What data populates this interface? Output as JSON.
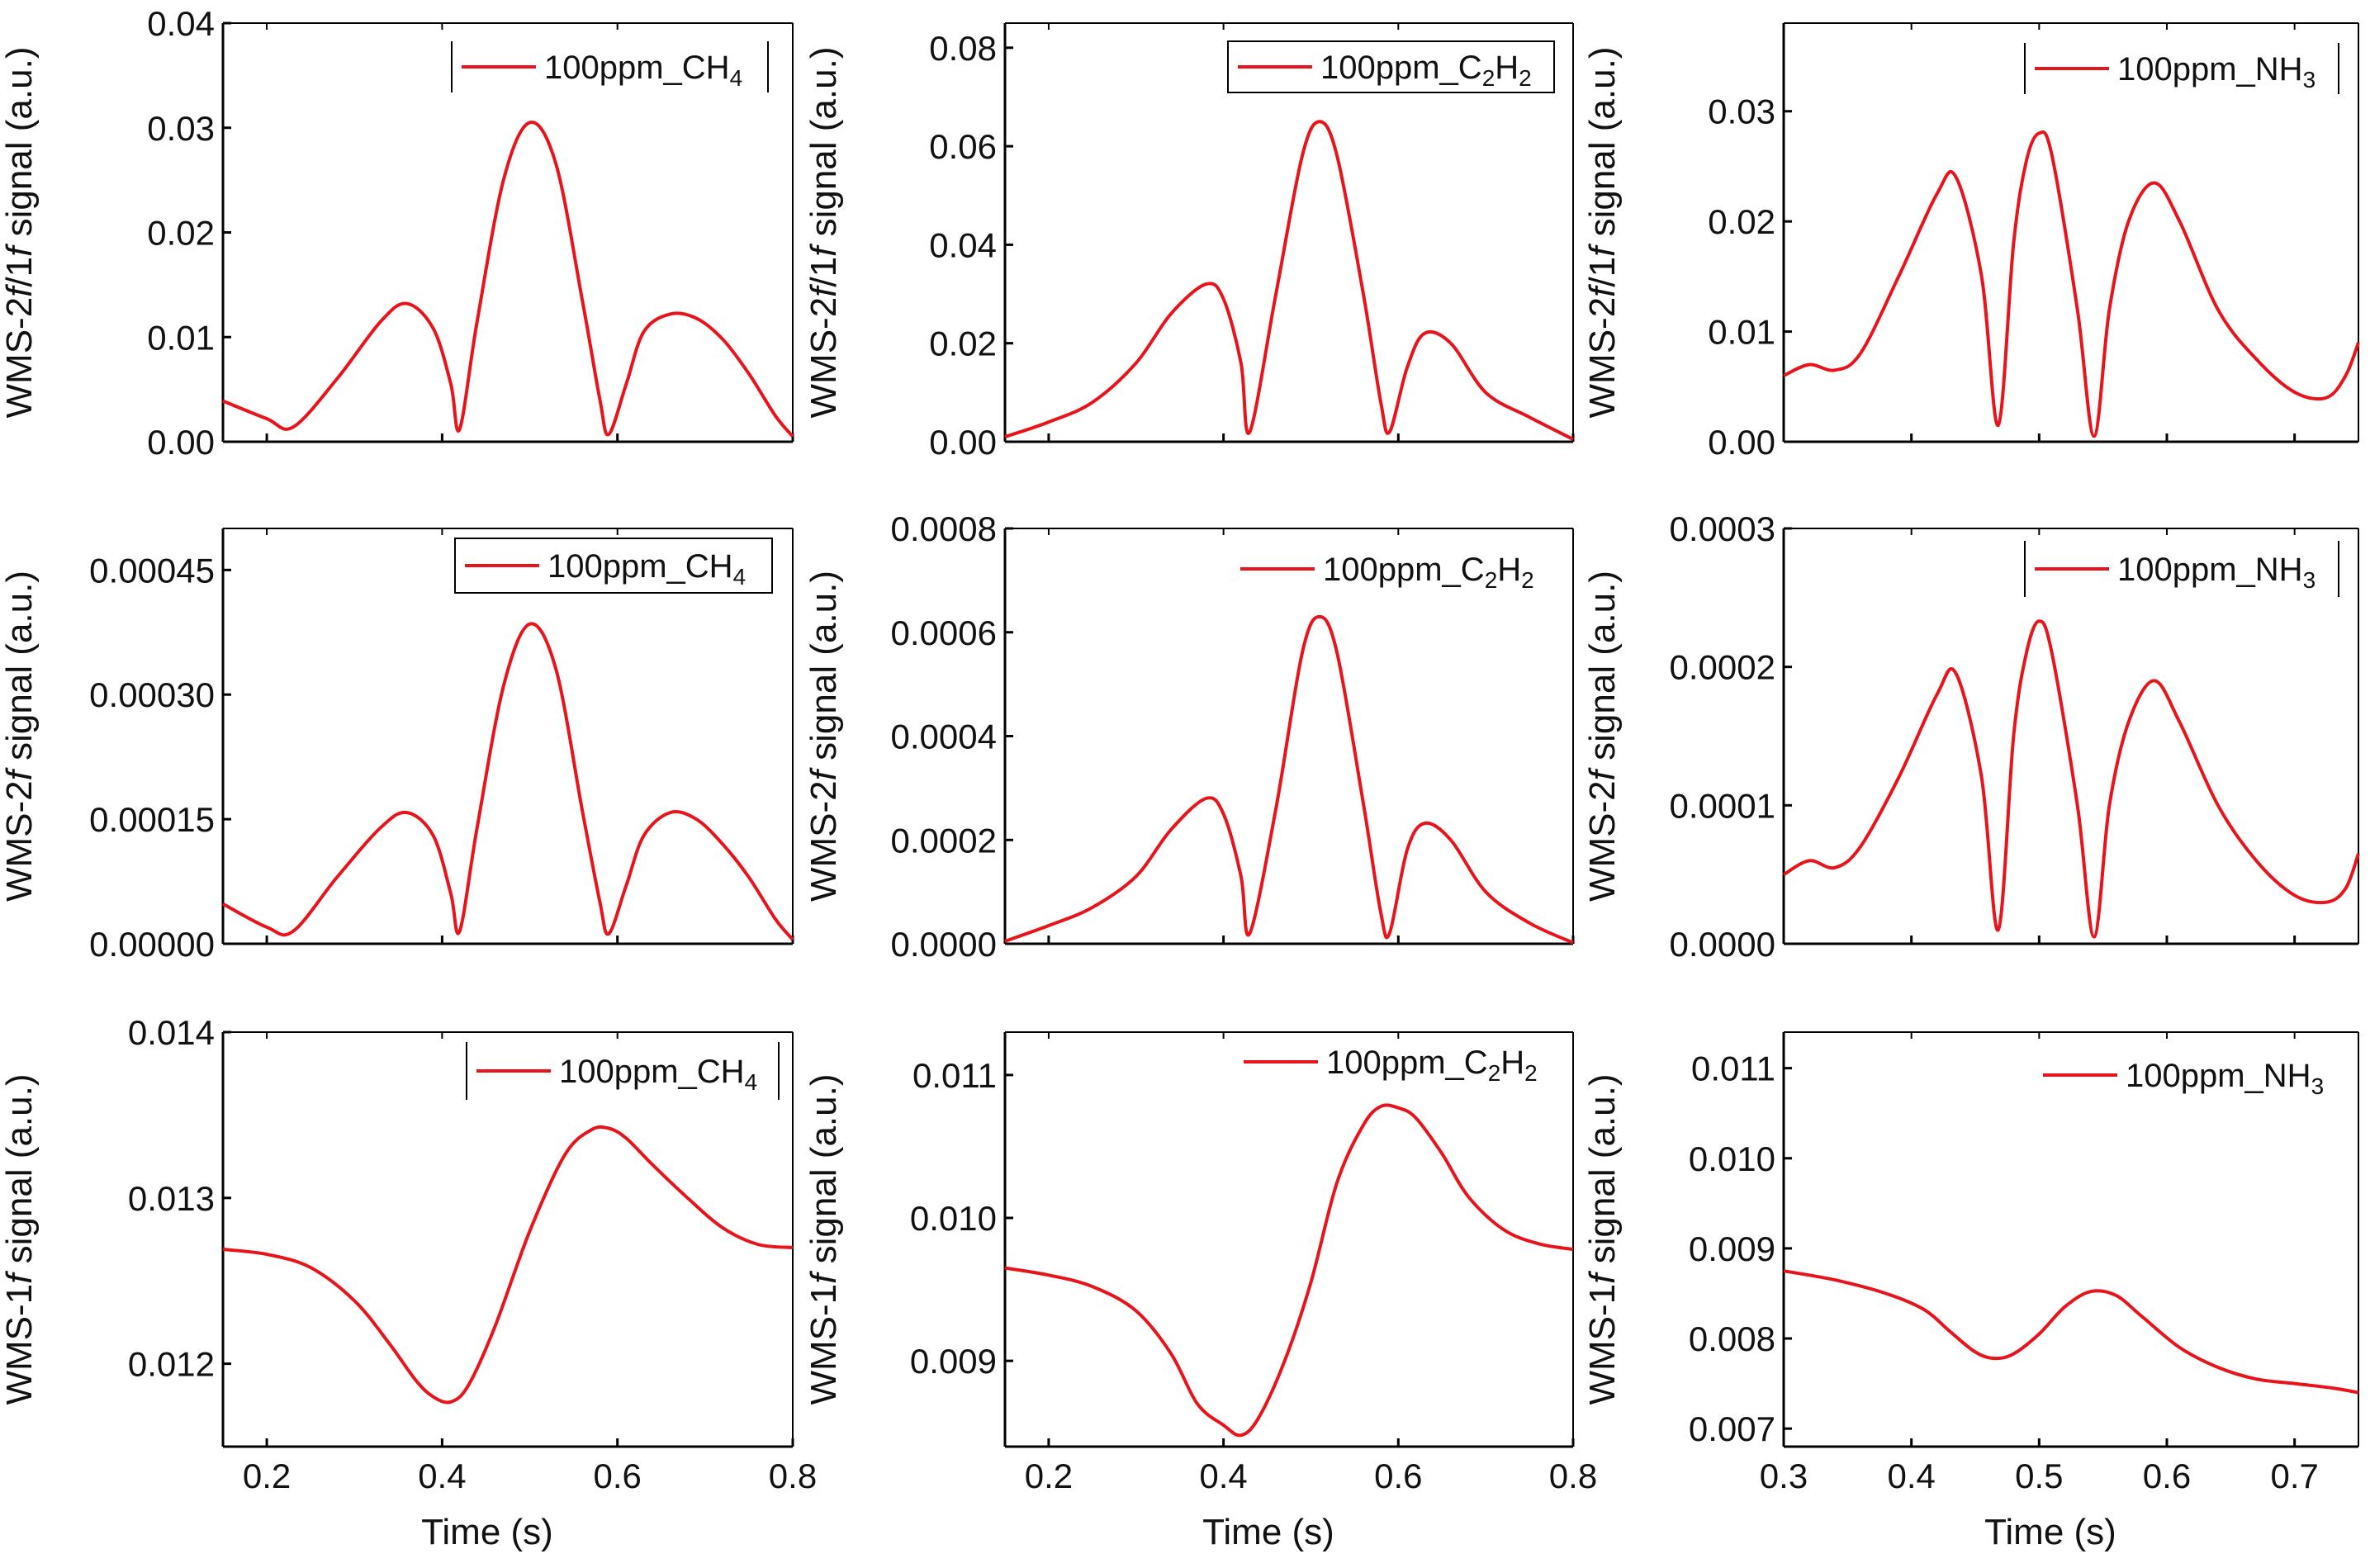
{
  "figure": {
    "line_color": "#e8141b",
    "axis_color": "#000000",
    "legend_border_color": "#000000"
  },
  "chart_data": [
    {
      "id": "r1c1",
      "type": "line",
      "xlabel": "",
      "ylabel": [
        "WMS-2",
        "f",
        "/1",
        "f",
        " signal (a.u.)"
      ],
      "xlim": [
        0.15,
        0.8
      ],
      "ylim": [
        0,
        0.04
      ],
      "yticks": [
        "0.00",
        "0.01",
        "0.02",
        "0.03",
        "0.04"
      ],
      "xticks": [],
      "legend": {
        "label": "100ppm_CH",
        "sub": "4",
        "style": "bars"
      },
      "series": [
        {
          "name": "100ppm_CH4",
          "x": [
            0.15,
            0.2,
            0.23,
            0.28,
            0.33,
            0.36,
            0.39,
            0.41,
            0.42,
            0.44,
            0.47,
            0.5,
            0.53,
            0.56,
            0.58,
            0.59,
            0.61,
            0.63,
            0.66,
            0.69,
            0.72,
            0.75,
            0.78,
            0.8
          ],
          "y": [
            0.0039,
            0.0022,
            0.0014,
            0.006,
            0.0115,
            0.0132,
            0.0108,
            0.0055,
            0.0012,
            0.0115,
            0.025,
            0.0305,
            0.0265,
            0.0135,
            0.004,
            0.0007,
            0.0055,
            0.0105,
            0.0122,
            0.0118,
            0.0098,
            0.0065,
            0.0025,
            0.0005
          ]
        }
      ]
    },
    {
      "id": "r1c2",
      "type": "line",
      "xlabel": "",
      "ylabel": [
        "WMS-2",
        "f",
        "/1",
        "f",
        " signal (a.u.)"
      ],
      "xlim": [
        0.15,
        0.8
      ],
      "ylim": [
        0,
        0.085
      ],
      "yticks": [
        "0.00",
        "0.02",
        "0.04",
        "0.06",
        "0.08"
      ],
      "xticks": [],
      "legend": {
        "label": "100ppm_C",
        "sub": "2",
        "mid": "H",
        "sub2": "2",
        "style": "box"
      },
      "series": [
        {
          "name": "100ppm_C2H2",
          "x": [
            0.15,
            0.2,
            0.25,
            0.3,
            0.34,
            0.38,
            0.4,
            0.42,
            0.43,
            0.46,
            0.49,
            0.51,
            0.53,
            0.56,
            0.58,
            0.59,
            0.61,
            0.63,
            0.66,
            0.7,
            0.75,
            0.8
          ],
          "y": [
            0.001,
            0.004,
            0.008,
            0.016,
            0.026,
            0.032,
            0.029,
            0.016,
            0.002,
            0.03,
            0.058,
            0.065,
            0.058,
            0.03,
            0.008,
            0.002,
            0.015,
            0.022,
            0.02,
            0.01,
            0.005,
            0.0005
          ]
        }
      ]
    },
    {
      "id": "r1c3",
      "type": "line",
      "xlabel": "",
      "ylabel": [
        "WMS-2",
        "f",
        "/1",
        "f",
        " signal (a.u.)"
      ],
      "xlim": [
        0.3,
        0.75
      ],
      "ylim": [
        0,
        0.038
      ],
      "yticks": [
        "0.00",
        "0.01",
        "0.02",
        "0.03"
      ],
      "xticks": [],
      "legend": {
        "label": "100ppm_NH",
        "sub": "3",
        "style": "bars"
      },
      "series": [
        {
          "name": "100ppm_NH3",
          "x": [
            0.3,
            0.32,
            0.34,
            0.36,
            0.39,
            0.42,
            0.435,
            0.455,
            0.468,
            0.48,
            0.49,
            0.5,
            0.51,
            0.53,
            0.543,
            0.555,
            0.57,
            0.59,
            0.61,
            0.64,
            0.67,
            0.7,
            0.725,
            0.74,
            0.75
          ],
          "y": [
            0.006,
            0.007,
            0.0065,
            0.008,
            0.015,
            0.0225,
            0.024,
            0.015,
            0.0015,
            0.018,
            0.0255,
            0.028,
            0.026,
            0.012,
            0.0005,
            0.012,
            0.02,
            0.0235,
            0.02,
            0.012,
            0.0075,
            0.0045,
            0.004,
            0.006,
            0.009
          ]
        }
      ]
    },
    {
      "id": "r2c1",
      "type": "line",
      "xlabel": "",
      "ylabel": [
        "WMS-2",
        "f",
        " signal (a.u.)"
      ],
      "xlim": [
        0.15,
        0.8
      ],
      "ylim": [
        0,
        0.0005
      ],
      "yticks": [
        "0.00000",
        "0.00015",
        "0.00030",
        "0.00045"
      ],
      "ytick_values": [
        0,
        0.00015,
        0.0003,
        0.00045
      ],
      "xticks": [],
      "legend": {
        "label": "100ppm_CH",
        "sub": "4",
        "style": "box"
      },
      "series": [
        {
          "name": "100ppm_CH4",
          "x": [
            0.15,
            0.2,
            0.23,
            0.28,
            0.33,
            0.36,
            0.39,
            0.41,
            0.42,
            0.44,
            0.47,
            0.5,
            0.53,
            0.56,
            0.58,
            0.59,
            0.61,
            0.63,
            0.66,
            0.69,
            0.72,
            0.75,
            0.78,
            0.8
          ],
          "y": [
            4.8e-05,
            2e-05,
            1.5e-05,
            8e-05,
            0.00014,
            0.000158,
            0.00013,
            6e-05,
            1.5e-05,
            0.00014,
            0.00031,
            0.000385,
            0.00033,
            0.00016,
            5e-05,
            1.2e-05,
            7e-05,
            0.00013,
            0.000158,
            0.00015,
            0.00012,
            8e-05,
            3e-05,
            5e-06
          ]
        }
      ]
    },
    {
      "id": "r2c2",
      "type": "line",
      "xlabel": "",
      "ylabel": [
        "WMS-2",
        "f",
        " signal (a.u.)"
      ],
      "xlim": [
        0.15,
        0.8
      ],
      "ylim": [
        0,
        0.0008
      ],
      "yticks": [
        "0.0000",
        "0.0002",
        "0.0004",
        "0.0006",
        "0.0008"
      ],
      "xticks": [],
      "legend": {
        "label": "100ppm_C",
        "sub": "2",
        "mid": "H",
        "sub2": "2",
        "style": "none"
      },
      "series": [
        {
          "name": "100ppm_C2H2",
          "x": [
            0.15,
            0.2,
            0.25,
            0.3,
            0.34,
            0.38,
            0.4,
            0.42,
            0.43,
            0.46,
            0.49,
            0.51,
            0.53,
            0.56,
            0.58,
            0.59,
            0.61,
            0.63,
            0.66,
            0.7,
            0.75,
            0.8
          ],
          "y": [
            5e-06,
            3.5e-05,
            7e-05,
            0.00013,
            0.00022,
            0.00028,
            0.00025,
            0.00013,
            2e-05,
            0.00026,
            0.00056,
            0.00063,
            0.00056,
            0.00027,
            6e-05,
            2e-05,
            0.00018,
            0.000232,
            0.0002,
            0.0001,
            4e-05,
            2e-06
          ]
        }
      ]
    },
    {
      "id": "r2c3",
      "type": "line",
      "xlabel": "",
      "ylabel": [
        "WMS-2",
        "f",
        " signal (a.u.)"
      ],
      "xlim": [
        0.3,
        0.75
      ],
      "ylim": [
        0,
        0.0003
      ],
      "yticks": [
        "0.0000",
        "0.0001",
        "0.0002",
        "0.0003"
      ],
      "xticks": [],
      "legend": {
        "label": "100ppm_NH",
        "sub": "3",
        "style": "bars"
      },
      "series": [
        {
          "name": "100ppm_NH3",
          "x": [
            0.3,
            0.32,
            0.34,
            0.36,
            0.39,
            0.42,
            0.435,
            0.455,
            0.468,
            0.48,
            0.49,
            0.5,
            0.51,
            0.53,
            0.543,
            0.555,
            0.57,
            0.59,
            0.61,
            0.64,
            0.67,
            0.7,
            0.725,
            0.74,
            0.75
          ],
          "y": [
            5e-05,
            6e-05,
            5.5e-05,
            7e-05,
            0.00012,
            0.00018,
            0.000195,
            0.00012,
            1e-05,
            0.00015,
            0.00021,
            0.000233,
            0.00021,
            0.0001,
            5e-06,
            0.0001,
            0.00016,
            0.00019,
            0.00016,
            0.0001,
            6e-05,
            3.5e-05,
            3e-05,
            4e-05,
            6.5e-05
          ]
        }
      ]
    },
    {
      "id": "r3c1",
      "type": "line",
      "xlabel": "Time (s)",
      "ylabel": [
        "WMS-1",
        "f",
        " signal (a.u.)"
      ],
      "xlim": [
        0.15,
        0.8
      ],
      "ylim": [
        0.0115,
        0.014
      ],
      "yticks": [
        "0.012",
        "0.013",
        "0.014"
      ],
      "ytick_values": [
        0.012,
        0.013,
        0.014
      ],
      "xticks": [
        "0.2",
        "0.4",
        "0.6",
        "0.8"
      ],
      "xtick_values": [
        0.2,
        0.4,
        0.6,
        0.8
      ],
      "legend": {
        "label": "100ppm_CH",
        "sub": "4",
        "style": "bars"
      },
      "series": [
        {
          "name": "100ppm_CH4",
          "x": [
            0.15,
            0.2,
            0.25,
            0.3,
            0.34,
            0.37,
            0.39,
            0.41,
            0.43,
            0.46,
            0.5,
            0.54,
            0.57,
            0.59,
            0.61,
            0.64,
            0.68,
            0.72,
            0.76,
            0.8
          ],
          "y": [
            0.01269,
            0.01266,
            0.01258,
            0.01238,
            0.01212,
            0.0119,
            0.0118,
            0.01177,
            0.01187,
            0.01222,
            0.0128,
            0.01326,
            0.01341,
            0.01342,
            0.01336,
            0.0132,
            0.013,
            0.01282,
            0.01272,
            0.0127
          ]
        }
      ]
    },
    {
      "id": "r3c2",
      "type": "line",
      "xlabel": "Time (s)",
      "ylabel": [
        "WMS-1",
        "f",
        " signal (a.u.)"
      ],
      "xlim": [
        0.15,
        0.8
      ],
      "ylim": [
        0.0084,
        0.0113
      ],
      "yticks": [
        "0.009",
        "0.010",
        "0.011"
      ],
      "ytick_values": [
        0.009,
        0.01,
        0.011
      ],
      "xticks": [
        "0.2",
        "0.4",
        "0.6",
        "0.8"
      ],
      "xtick_values": [
        0.2,
        0.4,
        0.6,
        0.8
      ],
      "legend": {
        "label": "100ppm_C",
        "sub": "2",
        "mid": "H",
        "sub2": "2",
        "style": "none"
      },
      "series": [
        {
          "name": "100ppm_C2H2",
          "x": [
            0.15,
            0.2,
            0.25,
            0.3,
            0.34,
            0.37,
            0.4,
            0.42,
            0.44,
            0.47,
            0.5,
            0.53,
            0.56,
            0.58,
            0.6,
            0.62,
            0.65,
            0.68,
            0.72,
            0.76,
            0.8
          ],
          "y": [
            0.00965,
            0.0096,
            0.00952,
            0.00935,
            0.00905,
            0.0087,
            0.00855,
            0.00848,
            0.0086,
            0.009,
            0.00955,
            0.01025,
            0.01065,
            0.01078,
            0.01077,
            0.0107,
            0.01045,
            0.01015,
            0.00992,
            0.00982,
            0.00978
          ]
        }
      ]
    },
    {
      "id": "r3c3",
      "type": "line",
      "xlabel": "Time (s)",
      "ylabel": [
        "WMS-1",
        "f",
        " signal (a.u.)"
      ],
      "xlim": [
        0.3,
        0.75
      ],
      "ylim": [
        0.0068,
        0.0114
      ],
      "yticks": [
        "0.007",
        "0.008",
        "0.009",
        "0.010",
        "0.011"
      ],
      "ytick_values": [
        0.007,
        0.008,
        0.009,
        0.01,
        0.011
      ],
      "xticks": [
        "0.3",
        "0.4",
        "0.5",
        "0.6",
        "0.7"
      ],
      "xtick_values": [
        0.3,
        0.4,
        0.5,
        0.6,
        0.7
      ],
      "legend": {
        "label": "100ppm_NH",
        "sub": "3",
        "style": "none"
      },
      "series": [
        {
          "name": "100ppm_NH3",
          "x": [
            0.3,
            0.34,
            0.38,
            0.41,
            0.43,
            0.45,
            0.465,
            0.48,
            0.5,
            0.52,
            0.54,
            0.56,
            0.58,
            0.61,
            0.64,
            0.67,
            0.7,
            0.73,
            0.75
          ],
          "y": [
            0.00875,
            0.00865,
            0.0085,
            0.00832,
            0.00808,
            0.00785,
            0.00778,
            0.00783,
            0.00805,
            0.00835,
            0.00852,
            0.00848,
            0.00825,
            0.0079,
            0.00768,
            0.00755,
            0.0075,
            0.00745,
            0.0074
          ]
        }
      ]
    }
  ]
}
